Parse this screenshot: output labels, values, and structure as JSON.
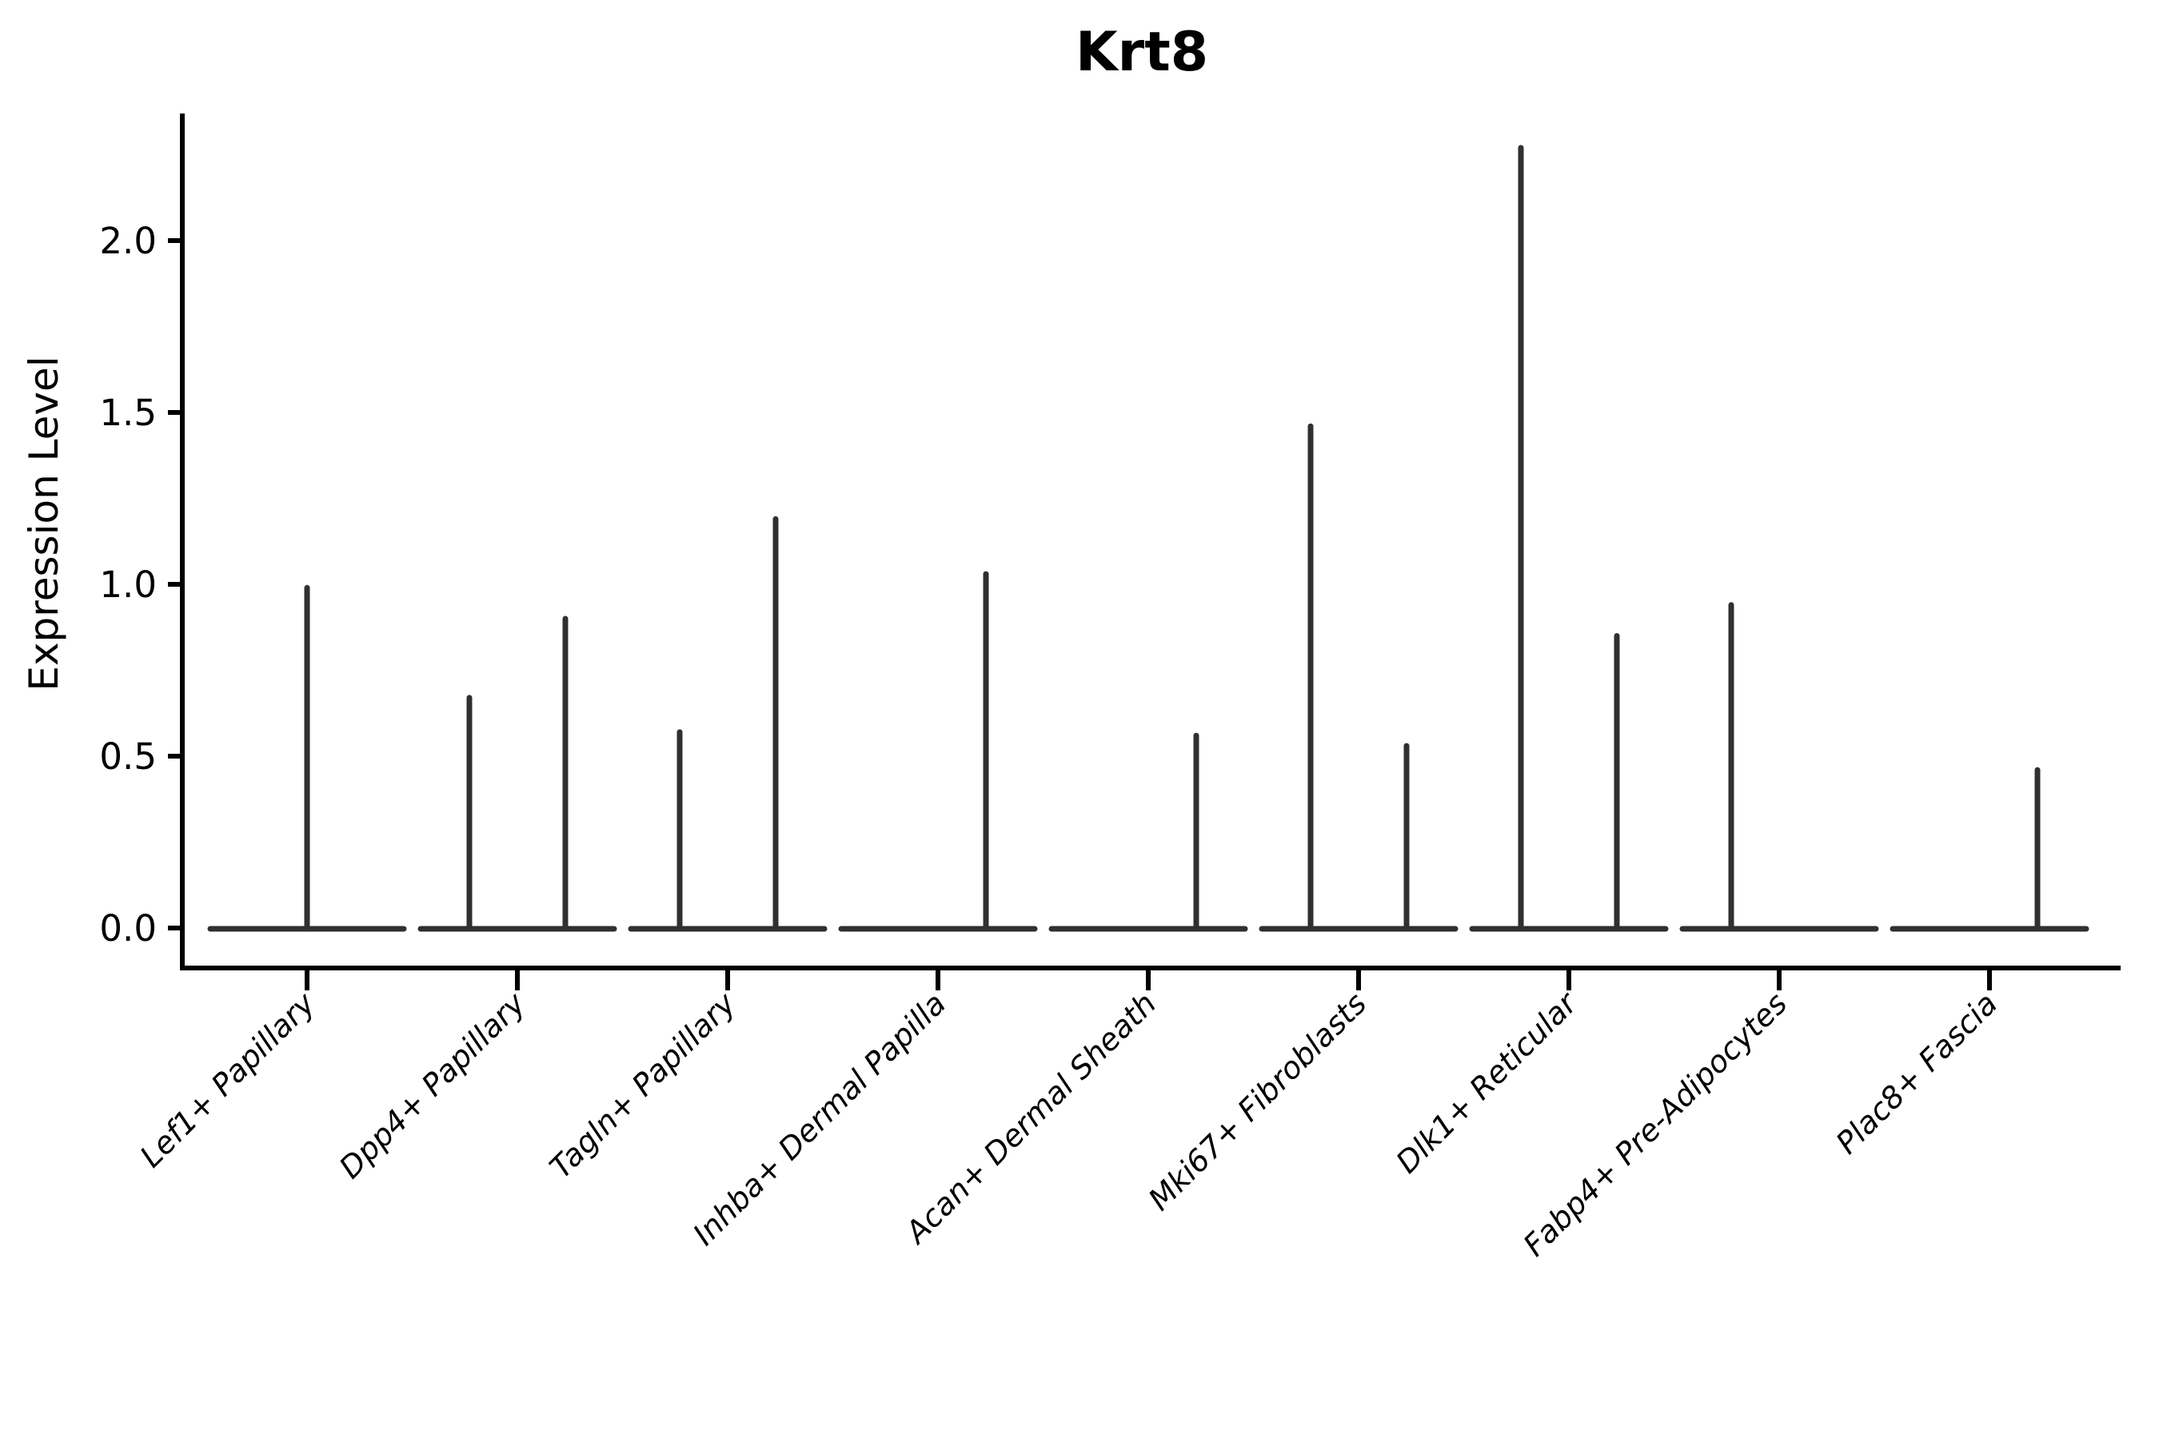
{
  "chart_data": {
    "type": "violin",
    "title": "Krt8",
    "ylabel": "Expression Level",
    "xlabel": "",
    "ylim": [
      -0.12,
      2.37
    ],
    "yticks": [
      0.0,
      0.5,
      1.0,
      1.5,
      2.0
    ],
    "grid": false,
    "legend": null,
    "axis_color": "#000000",
    "violin_line_color": "#303030",
    "violins": [
      {
        "category": "Lef1+ Papillary",
        "spikes": [
          {
            "side": "center",
            "max": 0.99
          }
        ]
      },
      {
        "category": "Dpp4+ Papillary",
        "spikes": [
          {
            "side": "left",
            "max": 0.67
          },
          {
            "side": "right",
            "max": 0.9
          }
        ]
      },
      {
        "category": "Tagln+ Papillary",
        "spikes": [
          {
            "side": "left",
            "max": 0.57
          },
          {
            "side": "right",
            "max": 1.19
          }
        ]
      },
      {
        "category": "Inhba+ Dermal Papilla",
        "spikes": [
          {
            "side": "right",
            "max": 1.03
          }
        ]
      },
      {
        "category": "Acan+ Dermal Sheath",
        "spikes": [
          {
            "side": "right",
            "max": 0.56
          }
        ]
      },
      {
        "category": "Mki67+ Fibroblasts",
        "spikes": [
          {
            "side": "left",
            "max": 1.46
          },
          {
            "side": "right",
            "max": 0.53
          }
        ]
      },
      {
        "category": "Dlk1+ Reticular",
        "spikes": [
          {
            "side": "left",
            "max": 2.27
          },
          {
            "side": "right",
            "max": 0.85
          }
        ]
      },
      {
        "category": "Fabp4+ Pre-Adipocytes",
        "spikes": [
          {
            "side": "left",
            "max": 0.94
          }
        ]
      },
      {
        "category": "Plac8+ Fascia",
        "spikes": [
          {
            "side": "right",
            "max": 0.46
          }
        ]
      }
    ]
  }
}
